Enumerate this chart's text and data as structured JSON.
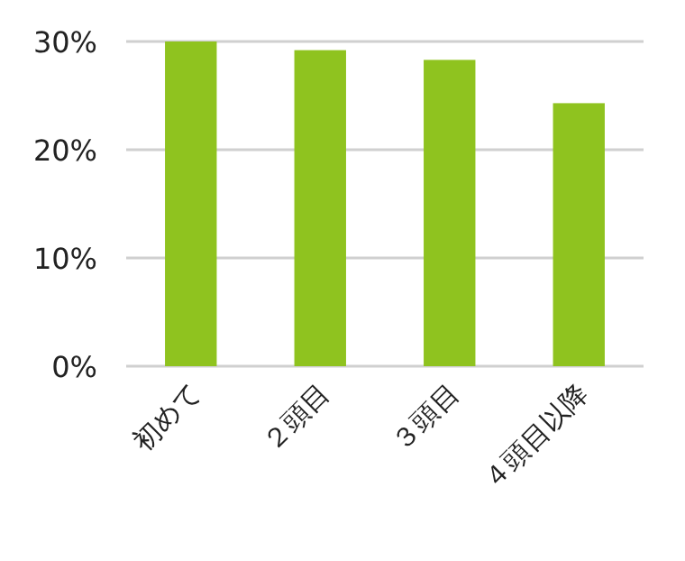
{
  "chart_data": {
    "type": "bar",
    "categories": [
      "初めて",
      "２頭目",
      "３頭目",
      "４頭目以降"
    ],
    "values": [
      30.0,
      29.2,
      28.3,
      24.3
    ],
    "color": "#8fc31f",
    "ylim": [
      0,
      30
    ],
    "yticks": [
      {
        "value": 0,
        "label": "0%"
      },
      {
        "value": 10,
        "label": "10%"
      },
      {
        "value": 20,
        "label": "20%"
      },
      {
        "value": 30,
        "label": "30%"
      }
    ],
    "grid": "y"
  }
}
